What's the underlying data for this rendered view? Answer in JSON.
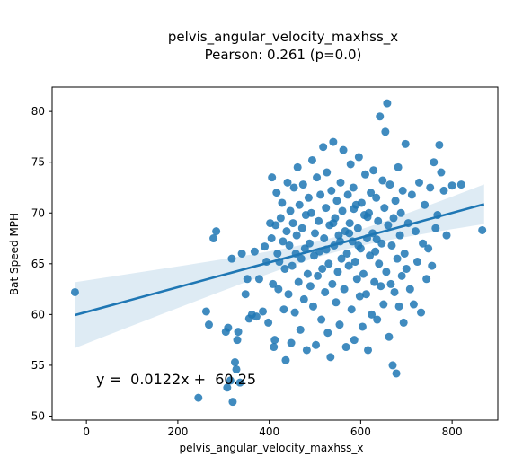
{
  "chart_data": {
    "type": "scatter",
    "title": "pelvis_angular_velocity_maxhss_x",
    "subtitle": "Pearson: 0.261 (p=0.0)",
    "xlabel": "pelvis_angular_velocity_maxhss_x",
    "ylabel": "Bat Speed MPH",
    "xlim": [
      -75,
      900
    ],
    "ylim": [
      49.6,
      82.4
    ],
    "xticks": [
      0,
      200,
      400,
      600,
      800
    ],
    "yticks": [
      50,
      55,
      60,
      65,
      70,
      75,
      80
    ],
    "grid": false,
    "legend": "none",
    "annotation": "y =  0.0122x +  60.25",
    "regression": {
      "slope": 0.0122,
      "intercept": 60.25,
      "x_range": [
        -25,
        870
      ]
    },
    "colors": {
      "points": "#1f77b4",
      "line": "#1f77b4",
      "band": "#1f77b4"
    },
    "series": [
      {
        "points": [
          [
            -25,
            62.2
          ],
          [
            245,
            51.8
          ],
          [
            262,
            60.3
          ],
          [
            268,
            59.0
          ],
          [
            278,
            67.5
          ],
          [
            284,
            68.2
          ],
          [
            305,
            58.3
          ],
          [
            308,
            52.8
          ],
          [
            310,
            58.7
          ],
          [
            315,
            53.5
          ],
          [
            318,
            65.5
          ],
          [
            320,
            51.4
          ],
          [
            325,
            55.3
          ],
          [
            328,
            54.6
          ],
          [
            330,
            57.5
          ],
          [
            332,
            58.3
          ],
          [
            336,
            53.3
          ],
          [
            340,
            66.0
          ],
          [
            348,
            62.0
          ],
          [
            352,
            63.5
          ],
          [
            356,
            59.6
          ],
          [
            362,
            60.0
          ],
          [
            368,
            66.2
          ],
          [
            372,
            59.8
          ],
          [
            378,
            63.5
          ],
          [
            386,
            60.3
          ],
          [
            390,
            66.7
          ],
          [
            394,
            65.2
          ],
          [
            398,
            59.2
          ],
          [
            402,
            69.0
          ],
          [
            405,
            67.5
          ],
          [
            406,
            73.5
          ],
          [
            408,
            63.0
          ],
          [
            410,
            56.8
          ],
          [
            412,
            57.5
          ],
          [
            414,
            68.8
          ],
          [
            416,
            72.0
          ],
          [
            418,
            66.0
          ],
          [
            420,
            62.5
          ],
          [
            422,
            65.2
          ],
          [
            425,
            69.5
          ],
          [
            428,
            71.0
          ],
          [
            430,
            67.2
          ],
          [
            432,
            60.5
          ],
          [
            434,
            64.5
          ],
          [
            436,
            55.5
          ],
          [
            438,
            68.2
          ],
          [
            440,
            73.0
          ],
          [
            442,
            62.0
          ],
          [
            444,
            66.8
          ],
          [
            446,
            70.2
          ],
          [
            448,
            57.2
          ],
          [
            450,
            64.8
          ],
          [
            452,
            69.0
          ],
          [
            454,
            72.5
          ],
          [
            456,
            60.2
          ],
          [
            458,
            66.0
          ],
          [
            460,
            67.8
          ],
          [
            462,
            74.5
          ],
          [
            464,
            63.2
          ],
          [
            466,
            70.8
          ],
          [
            468,
            58.5
          ],
          [
            470,
            65.5
          ],
          [
            472,
            68.5
          ],
          [
            474,
            72.8
          ],
          [
            476,
            61.5
          ],
          [
            478,
            66.5
          ],
          [
            480,
            69.8
          ],
          [
            482,
            56.5
          ],
          [
            484,
            64.0
          ],
          [
            486,
            71.5
          ],
          [
            488,
            67.0
          ],
          [
            490,
            62.8
          ],
          [
            492,
            70.0
          ],
          [
            494,
            75.2
          ],
          [
            496,
            60.8
          ],
          [
            498,
            65.8
          ],
          [
            500,
            68.0
          ],
          [
            502,
            57.0
          ],
          [
            504,
            73.5
          ],
          [
            506,
            63.8
          ],
          [
            508,
            69.2
          ],
          [
            510,
            66.2
          ],
          [
            512,
            71.8
          ],
          [
            514,
            59.5
          ],
          [
            516,
            64.5
          ],
          [
            518,
            76.5
          ],
          [
            520,
            67.5
          ],
          [
            522,
            62.2
          ],
          [
            524,
            70.5
          ],
          [
            526,
            74.0
          ],
          [
            528,
            58.2
          ],
          [
            530,
            65.0
          ],
          [
            532,
            68.8
          ],
          [
            534,
            55.8
          ],
          [
            536,
            72.2
          ],
          [
            538,
            63.0
          ],
          [
            540,
            77.0
          ],
          [
            542,
            66.8
          ],
          [
            544,
            69.5
          ],
          [
            546,
            61.2
          ],
          [
            548,
            71.2
          ],
          [
            550,
            64.2
          ],
          [
            552,
            67.8
          ],
          [
            554,
            59.0
          ],
          [
            556,
            73.0
          ],
          [
            558,
            65.5
          ],
          [
            560,
            70.2
          ],
          [
            562,
            76.2
          ],
          [
            564,
            62.5
          ],
          [
            566,
            68.2
          ],
          [
            568,
            56.8
          ],
          [
            570,
            66.0
          ],
          [
            572,
            71.8
          ],
          [
            574,
            64.8
          ],
          [
            576,
            69.0
          ],
          [
            578,
            74.8
          ],
          [
            580,
            60.5
          ],
          [
            582,
            67.2
          ],
          [
            584,
            72.5
          ],
          [
            586,
            57.5
          ],
          [
            588,
            65.2
          ],
          [
            590,
            70.8
          ],
          [
            592,
            63.5
          ],
          [
            594,
            68.5
          ],
          [
            596,
            75.5
          ],
          [
            598,
            61.8
          ],
          [
            600,
            66.5
          ],
          [
            602,
            71.0
          ],
          [
            604,
            58.8
          ],
          [
            606,
            64.0
          ],
          [
            608,
            69.8
          ],
          [
            610,
            73.8
          ],
          [
            612,
            62.0
          ],
          [
            614,
            67.5
          ],
          [
            616,
            56.5
          ],
          [
            618,
            70.0
          ],
          [
            620,
            65.8
          ],
          [
            622,
            72.0
          ],
          [
            624,
            60.0
          ],
          [
            626,
            68.0
          ],
          [
            628,
            74.2
          ],
          [
            630,
            63.2
          ],
          [
            632,
            66.2
          ],
          [
            634,
            71.5
          ],
          [
            636,
            59.5
          ],
          [
            638,
            69.2
          ],
          [
            640,
            65.0
          ],
          [
            642,
            79.5
          ],
          [
            644,
            62.8
          ],
          [
            646,
            67.0
          ],
          [
            648,
            73.2
          ],
          [
            650,
            61.0
          ],
          [
            652,
            70.5
          ],
          [
            654,
            78.0
          ],
          [
            656,
            64.2
          ],
          [
            658,
            80.8
          ],
          [
            660,
            68.8
          ],
          [
            662,
            57.8
          ],
          [
            664,
            72.8
          ],
          [
            666,
            63.0
          ],
          [
            668,
            66.8
          ],
          [
            670,
            55.0
          ],
          [
            672,
            69.5
          ],
          [
            674,
            62.2
          ],
          [
            676,
            71.2
          ],
          [
            678,
            54.2
          ],
          [
            680,
            65.5
          ],
          [
            682,
            74.5
          ],
          [
            684,
            60.8
          ],
          [
            686,
            67.8
          ],
          [
            688,
            70.0
          ],
          [
            690,
            63.8
          ],
          [
            692,
            72.2
          ],
          [
            694,
            59.2
          ],
          [
            696,
            66.0
          ],
          [
            698,
            76.8
          ],
          [
            700,
            64.5
          ],
          [
            704,
            69.0
          ],
          [
            708,
            62.5
          ],
          [
            712,
            71.8
          ],
          [
            716,
            61.0
          ],
          [
            720,
            68.2
          ],
          [
            724,
            65.2
          ],
          [
            728,
            73.0
          ],
          [
            732,
            60.2
          ],
          [
            736,
            67.0
          ],
          [
            740,
            70.8
          ],
          [
            744,
            63.5
          ],
          [
            748,
            66.5
          ],
          [
            752,
            72.5
          ],
          [
            756,
            64.8
          ],
          [
            760,
            75.0
          ],
          [
            764,
            68.5
          ],
          [
            768,
            69.8
          ],
          [
            772,
            76.7
          ],
          [
            776,
            74.0
          ],
          [
            782,
            72.2
          ],
          [
            788,
            67.8
          ],
          [
            800,
            72.7
          ],
          [
            820,
            72.8
          ],
          [
            866,
            68.3
          ],
          [
            540,
            69.0
          ],
          [
            555,
            67.2
          ],
          [
            575,
            68.0
          ],
          [
            595,
            66.8
          ],
          [
            615,
            69.6
          ],
          [
            635,
            67.4
          ],
          [
            525,
            66.4
          ],
          [
            585,
            70.4
          ]
        ]
      }
    ]
  }
}
